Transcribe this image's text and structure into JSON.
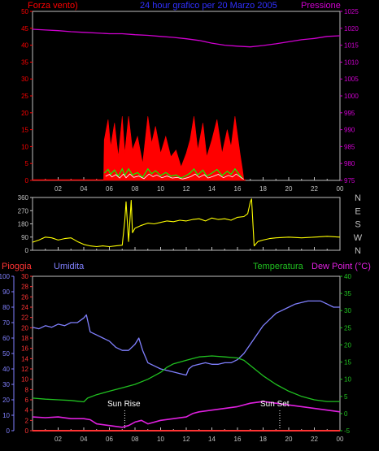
{
  "colors": {
    "background": "#000000",
    "frame": "#c0c0c0",
    "wind": "#ff0000",
    "gust_base": "#00ff00",
    "gust_peak": "#ffffff",
    "pressure": "#d000d0",
    "direction": "#ffff00",
    "rain": "#ff3333",
    "humidity": "#8080ff",
    "temperature": "#20c020",
    "dewpoint": "#e020e0",
    "annotation": "#ffffff",
    "title": "#3030ff"
  },
  "chart_data": [
    {
      "type": "line",
      "panel": "wind-pressure",
      "title": "24 hour grafico per 20 Marzo 2005",
      "left_axis_label": "Forza vento)",
      "right_axis_label": "Pressione",
      "left_ylim": [
        0,
        50
      ],
      "left_ticks": [
        "0",
        "5",
        "10",
        "15",
        "20",
        "25",
        "30",
        "35",
        "40",
        "45",
        "50"
      ],
      "right_ylim": [
        975,
        1025
      ],
      "right_ticks": [
        "975",
        "980",
        "985",
        "990",
        "995",
        "1000",
        "1005",
        "1010",
        "1015",
        "1020",
        "1025"
      ],
      "xlim": [
        0,
        24
      ],
      "x_ticks": [
        "02",
        "04",
        "06",
        "08",
        "10",
        "12",
        "14",
        "16",
        "18",
        "20",
        "22",
        "00"
      ],
      "series": [
        {
          "key": "pressure",
          "x": [
            0,
            1,
            2,
            3,
            4,
            5,
            6,
            7,
            8,
            9,
            10,
            11,
            12,
            13,
            14,
            15,
            16,
            17,
            18,
            19,
            20,
            21,
            22,
            23,
            24
          ],
          "values": [
            1019.7,
            1019.5,
            1019.3,
            1019.0,
            1018.8,
            1018.6,
            1018.4,
            1018.4,
            1018.1,
            1017.9,
            1017.6,
            1017.3,
            1016.9,
            1016.4,
            1015.6,
            1015.0,
            1014.7,
            1014.5,
            1014.9,
            1015.4,
            1016.0,
            1016.6,
            1017.0,
            1017.6,
            1017.8
          ]
        }
      ],
      "wind_period": [
        5.55,
        16.5
      ],
      "wind_peaks": [
        [
          5.6,
          12
        ],
        [
          5.9,
          18
        ],
        [
          6.1,
          10
        ],
        [
          6.4,
          17
        ],
        [
          6.7,
          7
        ],
        [
          7.0,
          19
        ],
        [
          7.2,
          8
        ],
        [
          7.5,
          19
        ],
        [
          7.8,
          9
        ],
        [
          8.2,
          13
        ],
        [
          8.6,
          5
        ],
        [
          9.0,
          19
        ],
        [
          9.3,
          11
        ],
        [
          9.6,
          16
        ],
        [
          10.0,
          8
        ],
        [
          10.4,
          13
        ],
        [
          10.8,
          7
        ],
        [
          11.2,
          9
        ],
        [
          11.6,
          4
        ],
        [
          12.0,
          8
        ],
        [
          12.3,
          12
        ],
        [
          12.6,
          19
        ],
        [
          12.9,
          9
        ],
        [
          13.3,
          17
        ],
        [
          13.6,
          7
        ],
        [
          14.0,
          12
        ],
        [
          14.4,
          18
        ],
        [
          14.8,
          8
        ],
        [
          15.2,
          15
        ],
        [
          15.5,
          10
        ],
        [
          15.8,
          19
        ],
        [
          16.2,
          8
        ],
        [
          16.4,
          3
        ]
      ]
    },
    {
      "type": "line",
      "panel": "wind-direction",
      "left_ylim": [
        0,
        360
      ],
      "left_ticks": [
        "0",
        "90",
        "180",
        "270",
        "360"
      ],
      "right_ticks": [
        "N",
        "W",
        "S",
        "E",
        "N"
      ],
      "xlim": [
        0,
        24
      ],
      "series": [
        {
          "key": "direction",
          "x": [
            0,
            0.5,
            1,
            1.5,
            2,
            2.5,
            3,
            3.5,
            4,
            4.5,
            5,
            5.5,
            6,
            6.5,
            7,
            7.2,
            7.3,
            7.5,
            7.7,
            7.8,
            8,
            8.5,
            9,
            9.5,
            10,
            10.5,
            11,
            11.5,
            12,
            12.5,
            13,
            13.5,
            14,
            14.5,
            15,
            15.5,
            16,
            16.5,
            16.8,
            17.0,
            17.1,
            17.3,
            17.6,
            18,
            18.5,
            19,
            20,
            21,
            22,
            23,
            24
          ],
          "values": [
            55,
            70,
            90,
            85,
            70,
            80,
            85,
            60,
            40,
            30,
            25,
            30,
            25,
            30,
            35,
            200,
            330,
            60,
            340,
            120,
            150,
            170,
            185,
            180,
            190,
            200,
            195,
            205,
            200,
            210,
            215,
            200,
            220,
            210,
            215,
            205,
            225,
            230,
            250,
            330,
            350,
            30,
            60,
            70,
            80,
            85,
            90,
            85,
            90,
            95,
            90
          ]
        }
      ]
    },
    {
      "type": "line",
      "panel": "rain-humidity-temperature",
      "label_rain": "Pioggia",
      "label_humidity": "Umidita",
      "label_temperature": "Temperatura",
      "label_dewpoint": "Dew Point (°C)",
      "annotation_sunrise": "Sun Rise",
      "annotation_sunset": "Sun Set",
      "sunrise_x": 7.2,
      "sunset_x": 19.3,
      "humidity_ylim": [
        0,
        100
      ],
      "humidity_ticks": [
        "0",
        "10",
        "20",
        "30",
        "40",
        "50",
        "60",
        "70",
        "80",
        "90",
        "100"
      ],
      "rain_ylim": [
        0,
        30
      ],
      "rain_ticks": [
        "0",
        "2",
        "4",
        "6",
        "8",
        "10",
        "12",
        "14",
        "16",
        "18",
        "20",
        "22",
        "24",
        "26",
        "28",
        "30"
      ],
      "temp_ylim": [
        -5,
        40
      ],
      "temp_ticks": [
        "-5",
        "0",
        "5",
        "10",
        "15",
        "20",
        "25",
        "30",
        "35",
        "40"
      ],
      "xlim": [
        0,
        24
      ],
      "x_ticks": [
        "02",
        "04",
        "06",
        "08",
        "10",
        "12",
        "14",
        "16",
        "18",
        "20",
        "22",
        "00"
      ],
      "series": [
        {
          "key": "humidity",
          "x": [
            0,
            0.5,
            1,
            1.5,
            2,
            2.5,
            3,
            3.5,
            4,
            4.2,
            4.5,
            5,
            5.5,
            6,
            6.5,
            7,
            7.5,
            8,
            8.3,
            8.6,
            9,
            9.5,
            10,
            10.5,
            11,
            11.5,
            12,
            12.2,
            12.5,
            13,
            13.5,
            14,
            14.5,
            15,
            15.5,
            16,
            16.5,
            17,
            17.5,
            18,
            18.5,
            19,
            19.5,
            20,
            20.5,
            21,
            21.5,
            22,
            22.5,
            23,
            23.5,
            24
          ],
          "values": [
            67,
            66,
            68,
            67,
            69,
            68,
            70,
            70,
            73,
            75,
            64,
            62,
            60,
            58,
            54,
            52,
            52,
            56,
            60,
            52,
            44,
            42,
            40,
            39,
            38,
            37,
            36,
            40,
            42,
            43,
            44,
            43,
            43,
            44,
            44,
            46,
            50,
            56,
            62,
            68,
            72,
            76,
            78,
            80,
            82,
            83,
            84,
            84,
            84,
            82,
            80,
            80
          ]
        },
        {
          "key": "temperature",
          "x": [
            0,
            1,
            2,
            3,
            3.5,
            4,
            4.3,
            5,
            6,
            7,
            8,
            9,
            10,
            10.5,
            11,
            12,
            12.5,
            13,
            14,
            15,
            16,
            16.5,
            17,
            18,
            19,
            20,
            21,
            22,
            23,
            24
          ],
          "values": [
            4.5,
            4.2,
            4.0,
            3.8,
            3.6,
            3.4,
            4.5,
            5.5,
            6.5,
            7.5,
            8.5,
            10.0,
            12.0,
            13.5,
            14.5,
            15.5,
            16.0,
            16.5,
            16.8,
            16.5,
            16.2,
            15.5,
            14.0,
            11.0,
            8.5,
            6.5,
            5.0,
            4.0,
            3.5,
            3.5
          ]
        },
        {
          "key": "dewpoint",
          "x": [
            0,
            1,
            2,
            3,
            4,
            4.5,
            5,
            6,
            7,
            7.5,
            8,
            8.5,
            9,
            10,
            11,
            12,
            12.5,
            13,
            14,
            15,
            16,
            17,
            18,
            19,
            20,
            21,
            22,
            23,
            24
          ],
          "values": [
            -1.0,
            -1.2,
            -1.0,
            -1.5,
            -1.5,
            -1.8,
            -3.0,
            -3.5,
            -4.0,
            -3.5,
            -2.5,
            -2.0,
            -3.0,
            -2.0,
            -1.5,
            -1.0,
            0.0,
            0.5,
            1.0,
            1.5,
            2.0,
            3.0,
            3.5,
            3.0,
            2.5,
            2.0,
            1.5,
            1.0,
            0.5
          ]
        },
        {
          "key": "rain",
          "x": [
            0,
            24
          ],
          "values": [
            0,
            0
          ]
        }
      ]
    }
  ]
}
